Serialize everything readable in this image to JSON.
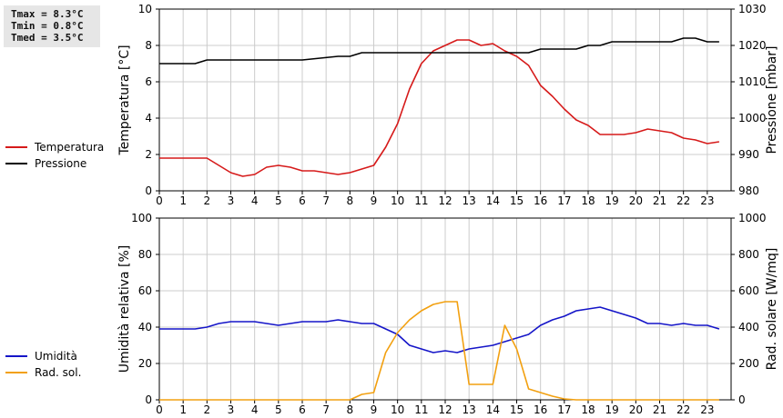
{
  "stats": [
    {
      "label": "Tmax",
      "value": "8.3°C"
    },
    {
      "label": "Tmin",
      "value": "0.8°C"
    },
    {
      "label": "Tmed",
      "value": "3.5°C"
    }
  ],
  "colors": {
    "temperature": "#d61a1a",
    "pressure": "#000000",
    "humidity": "#1515c8",
    "radiation": "#f2a010",
    "grid": "#cccccc"
  },
  "chart_data": [
    {
      "type": "line",
      "x_ticks": [
        "0",
        "1",
        "2",
        "3",
        "4",
        "5",
        "6",
        "7",
        "8",
        "9",
        "10",
        "11",
        "12",
        "13",
        "14",
        "15",
        "16",
        "17",
        "18",
        "19",
        "20",
        "21",
        "22",
        "23"
      ],
      "xlim": [
        0,
        24
      ],
      "ylabel": "Temperatura [°C]",
      "ylim": [
        0,
        10
      ],
      "y_ticks": [
        "0",
        "2",
        "4",
        "6",
        "8",
        "10"
      ],
      "ylabel_right": "Pressione [mbar]",
      "ylim_right": [
        980,
        1030
      ],
      "y_ticks_right": [
        "980",
        "990",
        "1000",
        "1010",
        "1020",
        "1030"
      ],
      "grid": true,
      "legend": "left",
      "series": [
        {
          "name": "Temperatura",
          "axis": "left",
          "color_key": "temperature",
          "x": [
            0,
            0.5,
            1,
            1.5,
            2,
            2.5,
            3,
            3.5,
            4,
            4.5,
            5,
            5.5,
            6,
            6.5,
            7,
            7.5,
            8,
            8.5,
            9,
            9.5,
            10,
            10.5,
            11,
            11.5,
            12,
            12.5,
            13,
            13.5,
            14,
            14.5,
            15,
            15.5,
            16,
            16.5,
            17,
            17.5,
            18,
            18.5,
            19,
            19.5,
            20,
            20.5,
            21,
            21.5,
            22,
            22.5,
            23,
            23.5
          ],
          "values": [
            1.8,
            1.8,
            1.8,
            1.8,
            1.8,
            1.4,
            1.0,
            0.8,
            0.9,
            1.3,
            1.4,
            1.3,
            1.1,
            1.1,
            1.0,
            0.9,
            1.0,
            1.2,
            1.4,
            2.4,
            3.7,
            5.6,
            7.0,
            7.7,
            8.0,
            8.3,
            8.3,
            8.0,
            8.1,
            7.7,
            7.4,
            6.9,
            5.8,
            5.2,
            4.5,
            3.9,
            3.6,
            3.1,
            3.1,
            3.1,
            3.2,
            3.4,
            3.3,
            3.2,
            2.9,
            2.8,
            2.6,
            2.7
          ]
        },
        {
          "name": "Pressione",
          "axis": "right",
          "color_key": "pressure",
          "x": [
            0,
            1.5,
            2,
            5.5,
            6,
            7.5,
            8,
            8.5,
            15,
            15.5,
            16,
            17.5,
            18,
            18.5,
            19,
            21.5,
            22,
            22.5,
            23,
            23.5
          ],
          "values": [
            1015,
            1015,
            1016,
            1016,
            1016,
            1017,
            1017,
            1018,
            1018,
            1018,
            1019,
            1019,
            1020,
            1020,
            1021,
            1021,
            1022,
            1022,
            1021,
            1021
          ]
        }
      ]
    },
    {
      "type": "line",
      "x_ticks": [
        "0",
        "1",
        "2",
        "3",
        "4",
        "5",
        "6",
        "7",
        "8",
        "9",
        "10",
        "11",
        "12",
        "13",
        "14",
        "15",
        "16",
        "17",
        "18",
        "19",
        "20",
        "21",
        "22",
        "23"
      ],
      "xlim": [
        0,
        24
      ],
      "ylabel": "Umidità relativa [%]",
      "ylim": [
        0,
        100
      ],
      "y_ticks": [
        "0",
        "20",
        "40",
        "60",
        "80",
        "100"
      ],
      "ylabel_right": "Rad. solare [W/mq]",
      "ylim_right": [
        0,
        1000
      ],
      "y_ticks_right": [
        "0",
        "200",
        "400",
        "600",
        "800",
        "1000"
      ],
      "grid": true,
      "legend": "left",
      "series": [
        {
          "name": "Umidità",
          "axis": "left",
          "color_key": "humidity",
          "x": [
            0,
            0.5,
            1,
            1.5,
            2,
            2.5,
            3,
            3.5,
            4,
            4.5,
            5,
            5.5,
            6,
            6.5,
            7,
            7.5,
            8,
            8.5,
            9,
            9.5,
            10,
            10.5,
            11,
            11.5,
            12,
            12.5,
            13,
            13.5,
            14,
            14.5,
            15,
            15.5,
            16,
            16.5,
            17,
            17.5,
            18,
            18.5,
            19,
            19.5,
            20,
            20.5,
            21,
            21.5,
            22,
            22.5,
            23,
            23.5
          ],
          "values": [
            39,
            39,
            39,
            39,
            40,
            42,
            43,
            43,
            43,
            42,
            41,
            42,
            43,
            43,
            43,
            44,
            43,
            42,
            42,
            39,
            36,
            30,
            28,
            26,
            27,
            26,
            28,
            29,
            30,
            32,
            34,
            36,
            41,
            44,
            46,
            49,
            50,
            51,
            49,
            47,
            45,
            42,
            42,
            41,
            42,
            41,
            41,
            39
          ]
        },
        {
          "name": "Rad. sol.",
          "axis": "right",
          "color_key": "radiation",
          "x": [
            0,
            0.5,
            1,
            1.5,
            2,
            2.5,
            3,
            3.5,
            4,
            4.5,
            5,
            5.5,
            6,
            6.5,
            7,
            7.5,
            8,
            8.5,
            9,
            9.5,
            10,
            10.5,
            11,
            11.5,
            12,
            12.5,
            13,
            13.5,
            14,
            14.5,
            15,
            15.5,
            16,
            16.5,
            17,
            17.5,
            18,
            18.5,
            19,
            19.5,
            20,
            20.5,
            21,
            21.5,
            22,
            22.5,
            23,
            23.5
          ],
          "values": [
            0,
            0,
            0,
            0,
            0,
            0,
            0,
            0,
            0,
            0,
            0,
            0,
            0,
            0,
            0,
            0,
            0,
            30,
            40,
            260,
            370,
            440,
            490,
            525,
            540,
            540,
            85,
            85,
            85,
            410,
            280,
            60,
            40,
            20,
            5,
            0,
            0,
            0,
            0,
            0,
            0,
            0,
            0,
            0,
            0,
            0,
            0,
            0
          ]
        }
      ]
    }
  ]
}
